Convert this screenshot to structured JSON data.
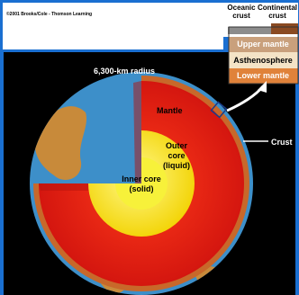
{
  "copyright": "©2001 Brooks/Cole - Thomson Learning",
  "inset": {
    "oceanic_crust": "Oceanic crust",
    "continental_crust": "Continental crust",
    "layers": [
      "Upper mantle",
      "Asthenosphere",
      "Lower mantle"
    ]
  },
  "globe": {
    "radius_label": "6,300-km radius",
    "mantle": "Mantle",
    "outer_core_line1": "Outer",
    "outer_core_line2": "core",
    "outer_core_line3": "(liquid)",
    "inner_core_line1": "Inner core",
    "inner_core_line2": "(solid)",
    "crust": "Crust"
  },
  "colors": {
    "frame_blue": "#1a6fd1",
    "ocean": "#3d8fc9",
    "land": "#c88a3a",
    "mantle": "#e3201b",
    "outer_core": "#f5dc00",
    "inner_core": "#f7f13a",
    "crust_rim": "#c8682a"
  }
}
